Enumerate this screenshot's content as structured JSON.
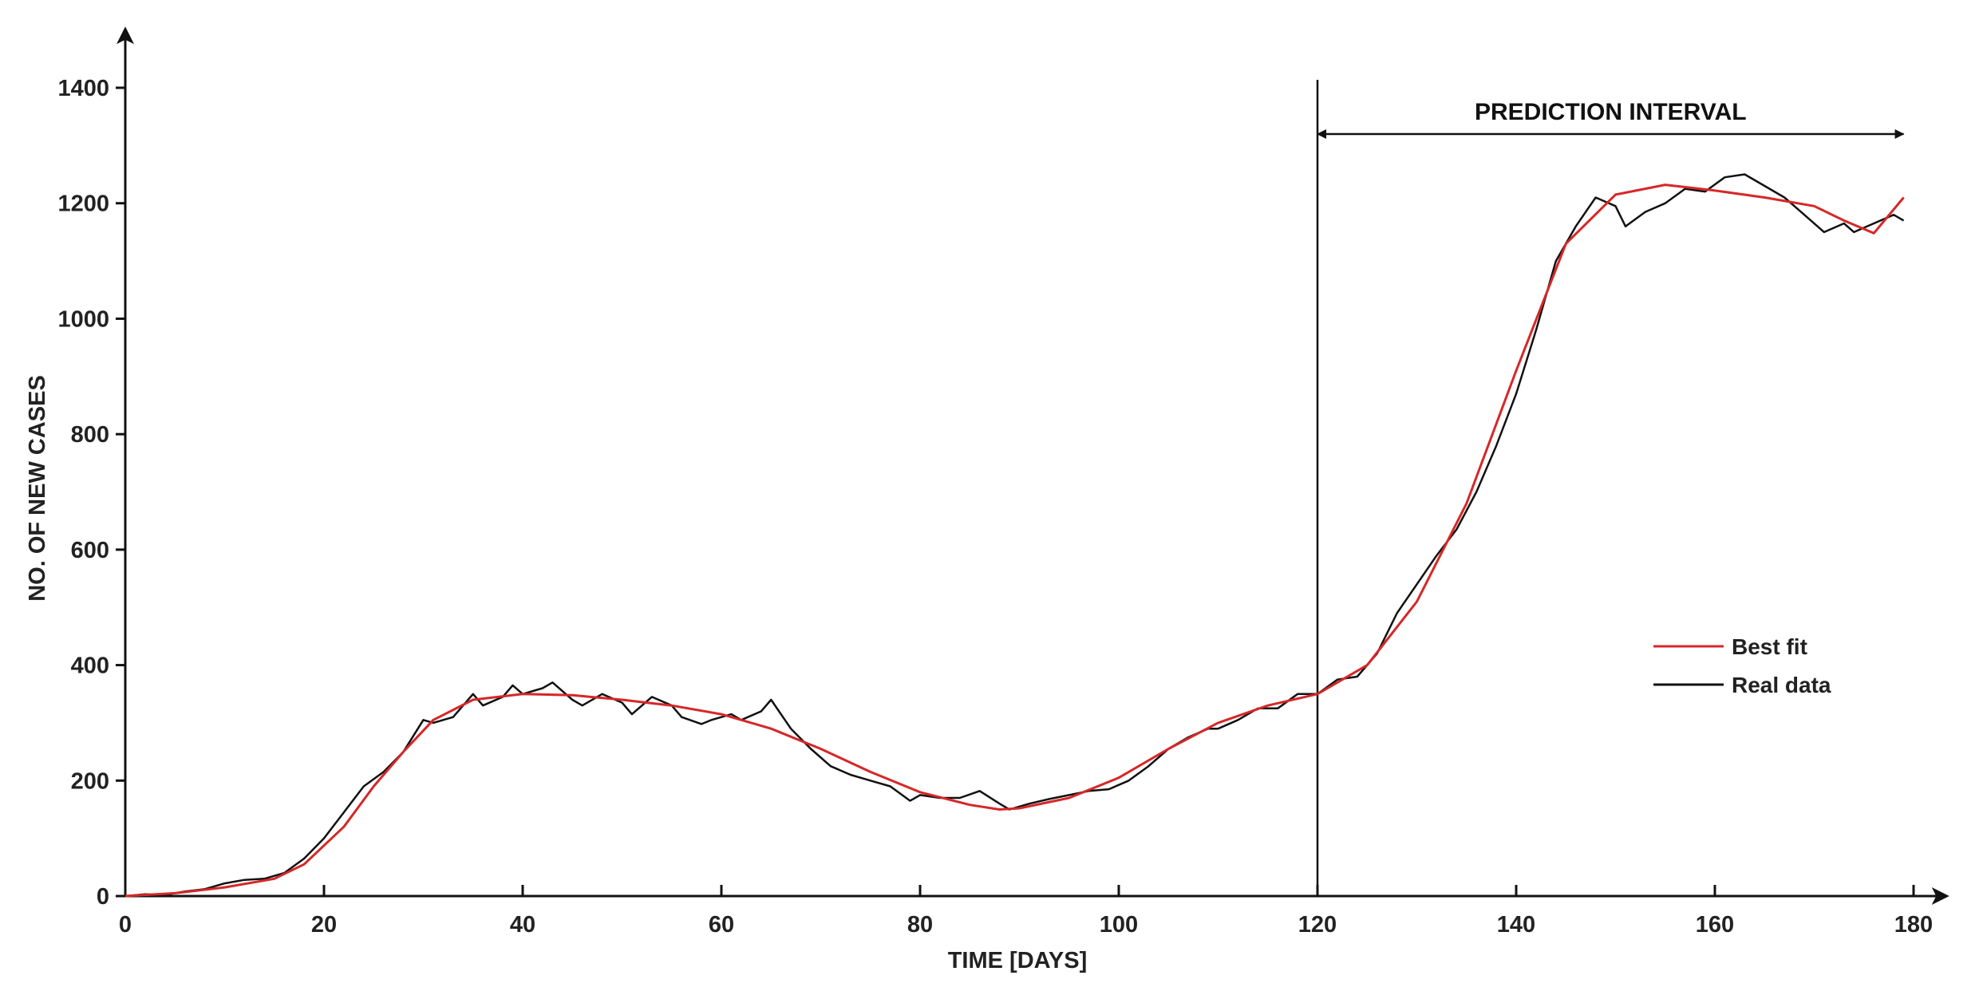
{
  "chart_data": {
    "type": "line",
    "title": "",
    "xlabel": "TIME [DAYS]",
    "ylabel": "NO. OF NEW CASES",
    "xlim": [
      0,
      180
    ],
    "ylim": [
      0,
      1400
    ],
    "x_ticks": [
      0,
      20,
      40,
      60,
      80,
      100,
      120,
      140,
      160,
      180
    ],
    "y_ticks": [
      0,
      200,
      400,
      600,
      800,
      1000,
      1200,
      1400
    ],
    "x_tick_labels": [
      "0",
      "20",
      "40",
      "60",
      "80",
      "100",
      "120",
      "140",
      "160",
      "180"
    ],
    "y_tick_labels": [
      "0",
      "200",
      "400",
      "600",
      "800",
      "1000",
      "1200",
      "1400"
    ],
    "grid": false,
    "legend": {
      "position": "right",
      "entries": [
        "Best fit",
        "Real data"
      ]
    },
    "annotations": {
      "prediction_boundary_x": 120,
      "prediction_interval_label": "PREDICTION INTERVAL",
      "prediction_interval_range": [
        120,
        179
      ]
    },
    "series": [
      {
        "name": "Best fit",
        "color": "#d62728",
        "x": [
          0,
          5,
          10,
          15,
          18,
          22,
          25,
          28,
          31,
          35,
          40,
          45,
          50,
          55,
          60,
          65,
          70,
          75,
          80,
          85,
          88,
          90,
          95,
          100,
          105,
          110,
          115,
          120,
          125,
          130,
          135,
          140,
          145,
          150,
          155,
          160,
          165,
          170,
          173,
          176,
          179
        ],
        "y": [
          0,
          5,
          15,
          30,
          55,
          120,
          190,
          250,
          305,
          340,
          350,
          348,
          340,
          330,
          315,
          290,
          255,
          215,
          180,
          158,
          150,
          152,
          170,
          205,
          255,
          300,
          330,
          350,
          400,
          510,
          680,
          910,
          1130,
          1215,
          1232,
          1222,
          1210,
          1195,
          1170,
          1148,
          1210
        ]
      },
      {
        "name": "Real data",
        "color": "#111111",
        "x": [
          0,
          2,
          4,
          6,
          8,
          10,
          12,
          14,
          16,
          18,
          20,
          22,
          24,
          26,
          28,
          30,
          31,
          33,
          35,
          36,
          38,
          39,
          40,
          42,
          43,
          45,
          46,
          48,
          50,
          51,
          53,
          55,
          56,
          58,
          59,
          61,
          62,
          64,
          65,
          67,
          69,
          71,
          73,
          75,
          77,
          79,
          80,
          82,
          84,
          86,
          88,
          89,
          91,
          93,
          95,
          97,
          99,
          101,
          103,
          105,
          107,
          109,
          110,
          112,
          114,
          116,
          118,
          120,
          122,
          124,
          126,
          128,
          130,
          132,
          134,
          136,
          138,
          140,
          142,
          144,
          146,
          148,
          150,
          151,
          153,
          155,
          157,
          159,
          161,
          163,
          165,
          167,
          169,
          171,
          173,
          174,
          176,
          178,
          179
        ],
        "y": [
          0,
          3,
          2,
          8,
          12,
          22,
          28,
          30,
          40,
          65,
          100,
          145,
          190,
          215,
          250,
          305,
          300,
          310,
          350,
          330,
          345,
          365,
          350,
          360,
          370,
          340,
          330,
          350,
          335,
          315,
          345,
          330,
          310,
          298,
          305,
          315,
          305,
          320,
          340,
          290,
          255,
          225,
          210,
          200,
          190,
          165,
          175,
          170,
          170,
          182,
          160,
          150,
          160,
          168,
          175,
          182,
          185,
          200,
          225,
          255,
          275,
          290,
          290,
          305,
          325,
          325,
          350,
          350,
          375,
          380,
          420,
          490,
          540,
          590,
          635,
          700,
          780,
          870,
          980,
          1100,
          1160,
          1210,
          1195,
          1160,
          1185,
          1200,
          1225,
          1220,
          1245,
          1250,
          1230,
          1210,
          1180,
          1150,
          1165,
          1150,
          1165,
          1180,
          1170
        ]
      }
    ]
  }
}
